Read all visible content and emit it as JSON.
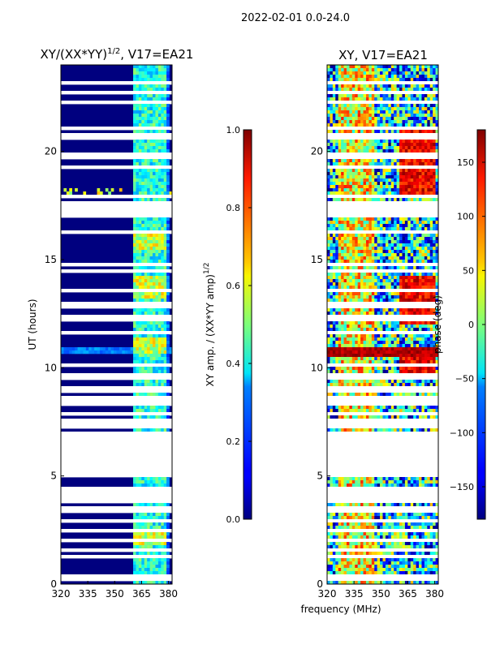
{
  "figure": {
    "suptitle": "2022-02-01 0.0-24.0"
  },
  "chart_data": [
    {
      "type": "heatmap",
      "title": "XY/(XX*YY)^1/2, V17=EA21",
      "title_main": "XY/(XX*YY)",
      "title_exp": "1/2",
      "title_tail": ", V17=EA21",
      "xlabel": "",
      "ylabel": "UT (hours)",
      "xlim": [
        320,
        382
      ],
      "ylim": [
        0,
        24
      ],
      "xticks": [
        320,
        335,
        350,
        365,
        380
      ],
      "yticks": [
        0,
        5,
        10,
        15,
        20
      ],
      "colorbar": {
        "label": "XY amp. / (XX*YY amp)^1/2",
        "label_main": "XY amp. / (XX*YY amp)",
        "label_exp": "1/2",
        "range": [
          0.0,
          1.0
        ],
        "ticks": [
          "0.0",
          "0.2",
          "0.4",
          "0.6",
          "0.8",
          "1.0"
        ],
        "colormap": "jet"
      },
      "description": "Mostly near 0 (dark blue) below 361 MHz; elevated values ~0.3-0.7 in channels 361-380 MHz; brief higher band near UT 10.8 h and 18.2 h"
    },
    {
      "type": "heatmap",
      "title": "XY, V17=EA21",
      "xlabel": "frequency (MHz)",
      "ylabel": "",
      "xlim": [
        320,
        382
      ],
      "ylim": [
        0,
        24
      ],
      "xticks": [
        320,
        335,
        350,
        365,
        380
      ],
      "yticks": [
        0,
        5,
        10,
        15,
        20
      ],
      "colorbar": {
        "label": "phase (deg)",
        "range": [
          -180,
          180
        ],
        "ticks": [
          "−150",
          "−100",
          "−50",
          "0",
          "50",
          "100",
          "150"
        ],
        "colormap": "jet"
      },
      "description": "Noisy phase with patches near +150 deg around 330-345 MHz and 360-380 MHz at UT 18-21 h and 12-14 h"
    }
  ]
}
